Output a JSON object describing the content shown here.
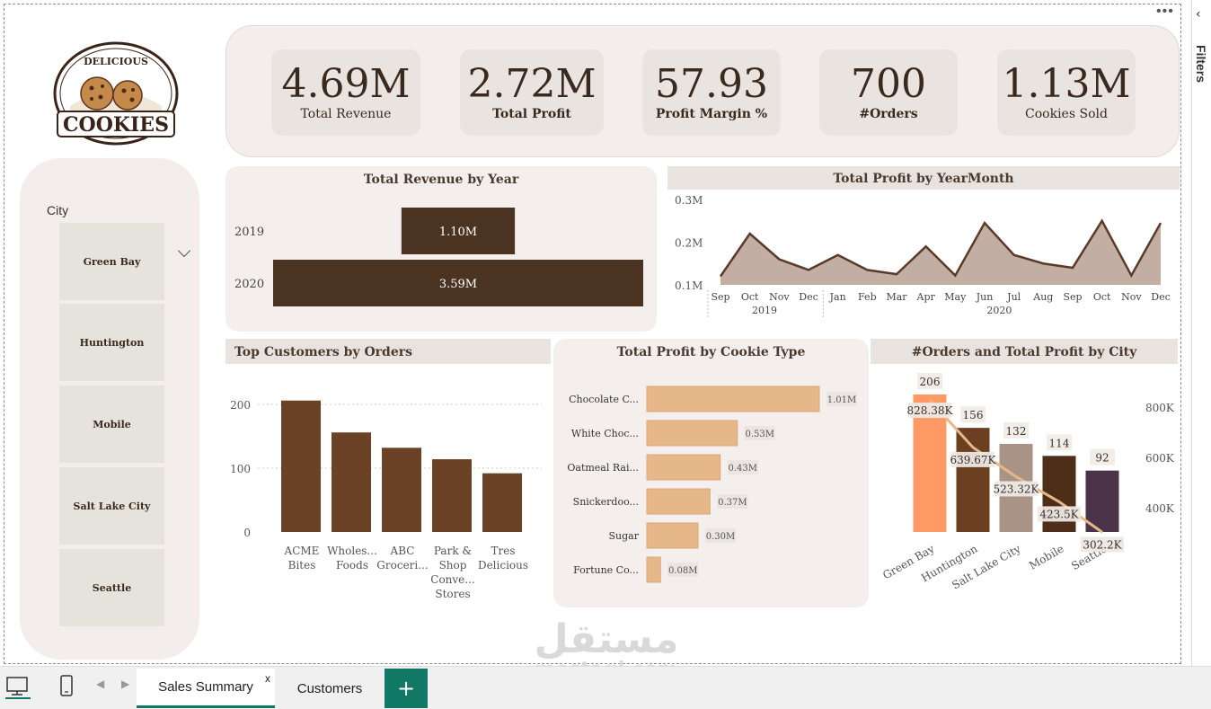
{
  "logo": {
    "top_text": "DELICIOUS",
    "main_text": "COOKIES"
  },
  "slicer": {
    "label": "City",
    "items": [
      "Green Bay",
      "Huntington",
      "Mobile",
      "Salt Lake City",
      "Seattle"
    ]
  },
  "kpis": [
    {
      "value": "4.69M",
      "label": "Total Revenue"
    },
    {
      "value": "2.72M",
      "label": "Total Profit"
    },
    {
      "value": "57.93",
      "label": "Profit Margin %"
    },
    {
      "value": "700",
      "label": "#Orders"
    },
    {
      "value": "1.13M",
      "label": "Cookies Sold"
    }
  ],
  "more_options": "•••",
  "filters_pane": {
    "label": "Filters",
    "collapse_icon": "chevron-left-icon"
  },
  "chart_data": [
    {
      "type": "bar",
      "orientation": "horizontal",
      "title": "Total Revenue by Year",
      "categories": [
        "2019",
        "2020"
      ],
      "values": [
        1.1,
        3.59
      ],
      "value_labels": [
        "1.10M",
        "3.59M"
      ],
      "units": "M",
      "color": "#4a3320"
    },
    {
      "type": "area",
      "title": "Total Profit by YearMonth",
      "x": [
        "Sep",
        "Oct",
        "Nov",
        "Dec",
        "Jan",
        "Feb",
        "Mar",
        "Apr",
        "May",
        "Jun",
        "Jul",
        "Aug",
        "Sep",
        "Oct",
        "Nov",
        "Dec"
      ],
      "year_groups": [
        {
          "label": "2019",
          "count": 4
        },
        {
          "label": "2020",
          "count": 12
        }
      ],
      "values": [
        0.12,
        0.22,
        0.16,
        0.135,
        0.17,
        0.135,
        0.125,
        0.19,
        0.122,
        0.245,
        0.17,
        0.15,
        0.14,
        0.25,
        0.122,
        0.245
      ],
      "y_ticks": [
        "0.1M",
        "0.2M",
        "0.3M"
      ],
      "ylim": [
        0.1,
        0.3
      ],
      "fill": "#c2aea2",
      "stroke": "#5a3a28"
    },
    {
      "type": "bar",
      "title": "Top Customers by Orders",
      "categories": [
        [
          "ACME",
          "Bites"
        ],
        [
          "Wholes...",
          "Foods"
        ],
        [
          "ABC",
          "Groceri..."
        ],
        [
          "Park &",
          "Shop",
          "Conve...",
          "Stores"
        ],
        [
          "Tres",
          "Delicious"
        ]
      ],
      "values": [
        206,
        156,
        132,
        114,
        92
      ],
      "y_ticks": [
        "0",
        "100",
        "200"
      ],
      "ylim": [
        0,
        220
      ],
      "color": "#6b4226"
    },
    {
      "type": "bar",
      "orientation": "horizontal",
      "title": "Total Profit by Cookie Type",
      "categories": [
        "Chocolate C...",
        "White Choc...",
        "Oatmeal Rai...",
        "Snickerdoo...",
        "Sugar",
        "Fortune Co..."
      ],
      "values": [
        1.01,
        0.53,
        0.43,
        0.37,
        0.3,
        0.08
      ],
      "value_labels": [
        "1.01M",
        "0.53M",
        "0.43M",
        "0.37M",
        "0.30M",
        "0.08M"
      ],
      "color": "#e6b889"
    },
    {
      "type": "bar",
      "title": "#Orders and Total Profit by City",
      "categories": [
        "Green Bay",
        "Huntington",
        "Salt Lake City",
        "Mobile",
        "Seattle"
      ],
      "series": [
        {
          "name": "#Orders",
          "type": "bar",
          "values": [
            206,
            156,
            132,
            114,
            92
          ],
          "labels": [
            "206",
            "156",
            "132",
            "114",
            "92"
          ],
          "colors": [
            "#ff9a66",
            "#6b3f22",
            "#a89384",
            "#4e2e18",
            "#4b3349"
          ]
        },
        {
          "name": "Total Profit",
          "type": "line",
          "values": [
            828380,
            639670,
            523320,
            423500,
            302200
          ],
          "labels": [
            "828.38K",
            "639.67K",
            "523.32K",
            "423.5K",
            "302.2K"
          ],
          "color": "#e6b889"
        }
      ],
      "y2_ticks": [
        "400K",
        "600K",
        "800K"
      ],
      "y2lim": [
        200000,
        900000
      ],
      "ylim": [
        0,
        230
      ]
    }
  ],
  "tabs": {
    "pages": [
      {
        "label": "Sales Summary",
        "close": "x"
      },
      {
        "label": "Customers"
      }
    ],
    "add_label": "+"
  },
  "watermark": {
    "arabic": "مستقل",
    "latin": "mostaql.com"
  }
}
